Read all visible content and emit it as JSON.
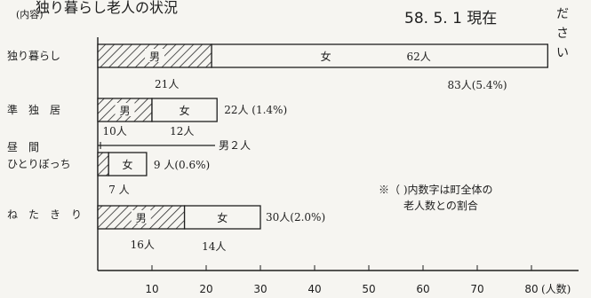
{
  "header": {
    "title": "独り暮らし老人の状況",
    "date_label": "58. 5. 1 現在",
    "category_heading": "(内容)",
    "side_text": [
      "だ",
      "さ",
      "い"
    ]
  },
  "chart_data": {
    "type": "bar",
    "orientation": "horizontal",
    "stacked": true,
    "categories": [
      "独り暮らし",
      "準独居",
      "昼間ひとりぼっち",
      "ねたきり"
    ],
    "category_lines": [
      [
        "独り暮らし"
      ],
      [
        "準　独　居"
      ],
      [
        "昼　間",
        "ひとりぼっち"
      ],
      [
        "ね　た　き　り"
      ]
    ],
    "series": [
      {
        "name": "男",
        "values": [
          21,
          10,
          2,
          16
        ],
        "pattern": "hatched"
      },
      {
        "name": "女",
        "values": [
          62,
          12,
          7,
          14
        ],
        "pattern": "plain"
      }
    ],
    "totals": [
      83,
      22,
      9,
      30
    ],
    "male_labels": [
      "21人",
      "10人",
      "男２人",
      "16人"
    ],
    "female_labels": [
      "62人",
      "12人",
      "7 人",
      "14人"
    ],
    "total_labels": [
      "83人(5.4%)",
      "22人 (1.4%)",
      "9 人(0.6%)",
      "30人(2.0%)"
    ],
    "bar_text_male": "男",
    "bar_text_female": "女",
    "xlabel": "(人数)",
    "xticks": [
      10,
      20,
      30,
      40,
      50,
      60,
      70,
      80
    ],
    "xlim": [
      0,
      90
    ],
    "note": [
      "※（  )内数字は町全体の",
      "老人数との割合"
    ],
    "colors": {
      "ink": "#1e1e1e",
      "background": "#f6f5f1"
    }
  }
}
